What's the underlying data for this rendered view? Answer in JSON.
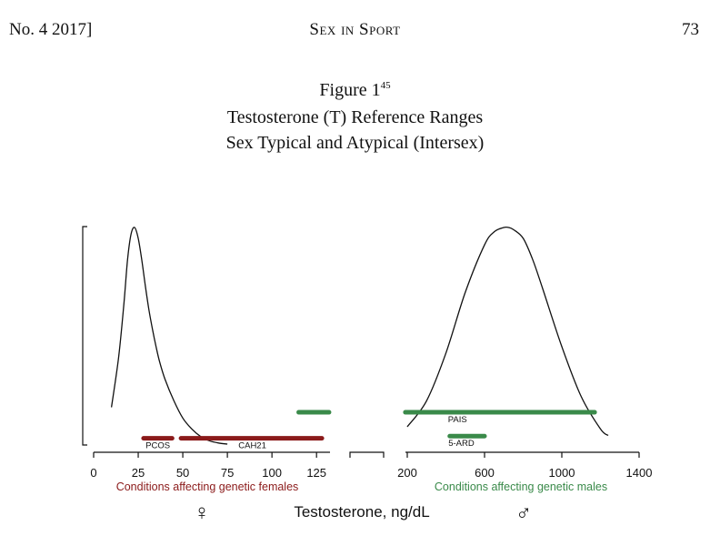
{
  "header": {
    "left": "No. 4 2017]",
    "center": "Sex in Sport",
    "right": "73"
  },
  "figure": {
    "label": "Figure 1",
    "footnote": "45",
    "title_line1": "Testosterone (T) Reference Ranges",
    "title_line2": "Sex Typical and Atypical (Intersex)"
  },
  "colors": {
    "female": "#8b1a1a",
    "male": "#3a8a4a",
    "curve": "#111111"
  },
  "chart_data": {
    "type": "area",
    "xlabel": "Testosterone, ng/dL",
    "female_panel": {
      "xlim": [
        0,
        130
      ],
      "ticks": [
        "0",
        "25",
        "50",
        "75",
        "100",
        "125"
      ],
      "tick_values": [
        0,
        25,
        50,
        75,
        100,
        125
      ],
      "axis_label": "Conditions affecting genetic females",
      "symbol": "♀",
      "curve": {
        "x": [
          10,
          14,
          17,
          19,
          21,
          23,
          25,
          27,
          29,
          31,
          33,
          35,
          37,
          40,
          45,
          50,
          55,
          60,
          65,
          70,
          75
        ],
        "y": [
          0.17,
          0.4,
          0.65,
          0.85,
          0.97,
          1.0,
          0.95,
          0.85,
          0.73,
          0.62,
          0.53,
          0.45,
          0.38,
          0.3,
          0.2,
          0.12,
          0.07,
          0.035,
          0.015,
          0.005,
          0.0
        ]
      },
      "bars": [
        {
          "label": "PCOS",
          "from": 28,
          "to": 44,
          "color": "female",
          "level": 0.01,
          "text_x": 36
        },
        {
          "label": "CAH21",
          "from": 49,
          "to": 128,
          "color": "female",
          "level": 0.01,
          "text_x": 89
        },
        {
          "label": "",
          "from": 115,
          "to": 132,
          "color": "male",
          "level": 0.13,
          "text_x": 0
        }
      ]
    },
    "male_panel": {
      "xlim": [
        200,
        1400
      ],
      "ticks": [
        "200",
        "600",
        "1000",
        "1400"
      ],
      "tick_values": [
        200,
        600,
        1000,
        1400
      ],
      "axis_label": "Conditions affecting genetic males",
      "symbol": "♂",
      "curve": {
        "x": [
          200,
          300,
          400,
          500,
          600,
          650,
          700,
          725,
          750,
          800,
          850,
          900,
          1000,
          1100,
          1200,
          1240
        ],
        "y": [
          0.08,
          0.2,
          0.42,
          0.7,
          0.92,
          0.98,
          1.0,
          1.0,
          0.99,
          0.95,
          0.85,
          0.72,
          0.45,
          0.22,
          0.07,
          0.04
        ]
      },
      "bars": [
        {
          "label": "PAIS",
          "from": 190,
          "to": 1170,
          "color": "male",
          "level": 0.13,
          "text_x": 460
        },
        {
          "label": "5-ARD",
          "from": 420,
          "to": 600,
          "color": "male",
          "level": 0.02,
          "text_x": 480
        }
      ]
    }
  }
}
